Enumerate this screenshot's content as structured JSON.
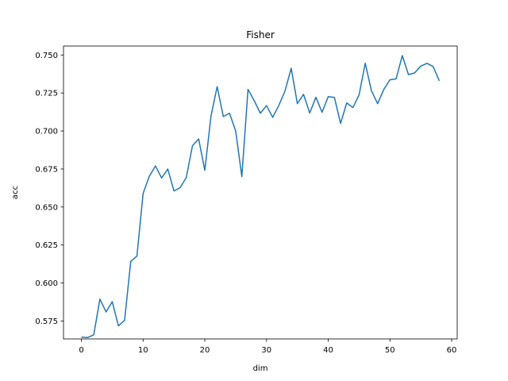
{
  "chart_data": {
    "type": "line",
    "title": "Fisher",
    "xlabel": "dim",
    "ylabel": "acc",
    "xlim": [
      -2.9,
      60.9
    ],
    "ylim": [
      0.5632,
      0.7559
    ],
    "xticks": [
      0,
      10,
      20,
      30,
      40,
      50,
      60
    ],
    "xtick_labels": [
      "0",
      "10",
      "20",
      "30",
      "40",
      "50",
      "60"
    ],
    "yticks": [
      0.575,
      0.6,
      0.625,
      0.65,
      0.675,
      0.7,
      0.725,
      0.75
    ],
    "ytick_labels": [
      "0.575",
      "0.600",
      "0.625",
      "0.650",
      "0.675",
      "0.700",
      "0.725",
      "0.750"
    ],
    "grid": false,
    "line_color": "#1f77b4",
    "series": [
      {
        "x": [
          0,
          1,
          2,
          3,
          4,
          5,
          6,
          7,
          8,
          9,
          10,
          11,
          12,
          13,
          14,
          15,
          16,
          17,
          18,
          19,
          20,
          21,
          22,
          23,
          24,
          25,
          26,
          27,
          28,
          29,
          30,
          31,
          32,
          33,
          34,
          35,
          36,
          37,
          38,
          39,
          40,
          41,
          42,
          43,
          44,
          45,
          46,
          47,
          48,
          49,
          50,
          51,
          52,
          53,
          54,
          55,
          56,
          57,
          58
        ],
        "values": [
          0.5644,
          0.5641,
          0.5659,
          0.5894,
          0.581,
          0.5877,
          0.5718,
          0.5755,
          0.6143,
          0.6177,
          0.6589,
          0.6702,
          0.677,
          0.6691,
          0.675,
          0.6606,
          0.6627,
          0.6694,
          0.6903,
          0.6948,
          0.6742,
          0.7098,
          0.7292,
          0.7095,
          0.7117,
          0.7001,
          0.67,
          0.7274,
          0.72,
          0.7117,
          0.7167,
          0.709,
          0.7169,
          0.7264,
          0.7413,
          0.718,
          0.7241,
          0.7118,
          0.7222,
          0.7123,
          0.7226,
          0.7221,
          0.705,
          0.7185,
          0.7154,
          0.7238,
          0.7446,
          0.7265,
          0.718,
          0.7273,
          0.7337,
          0.7343,
          0.7496,
          0.7371,
          0.7382,
          0.7427,
          0.7445,
          0.7424,
          0.733
        ]
      }
    ]
  }
}
